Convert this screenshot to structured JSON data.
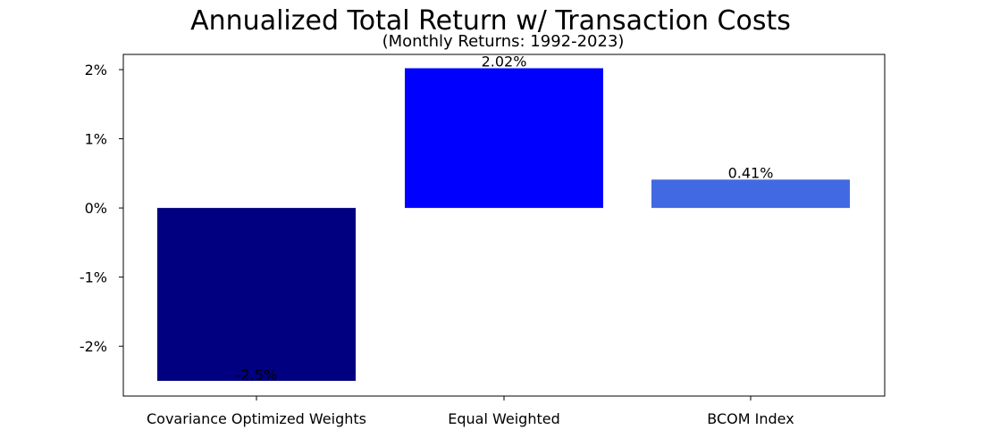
{
  "chart_data": {
    "type": "bar",
    "title": "Annualized Total Return w/ Transaction Costs",
    "subtitle": "(Monthly Returns: 1992-2023)",
    "xlabel": "",
    "ylabel": "",
    "categories": [
      "Covariance Optimized Weights",
      "Equal Weighted",
      "BCOM Index"
    ],
    "values": [
      -2.5,
      2.02,
      0.41
    ],
    "value_labels": [
      "-2.5%",
      "2.02%",
      "0.41%"
    ],
    "colors": [
      "#000080",
      "#0000ff",
      "#4169e1"
    ],
    "ylim": [
      -2.72,
      2.22
    ],
    "yticks": [
      -2,
      -1,
      0,
      1,
      2
    ],
    "ytick_labels": [
      "-2%",
      "-1%",
      "0%",
      "1%",
      "2%"
    ],
    "grid": false,
    "legend": "none"
  }
}
